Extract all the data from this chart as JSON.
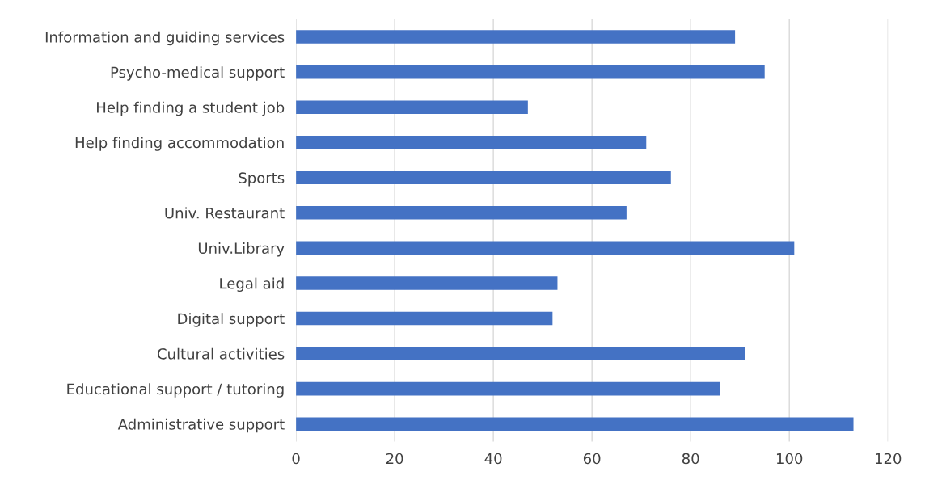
{
  "chart_data": {
    "type": "bar",
    "orientation": "horizontal",
    "categories": [
      "Information and guiding services",
      "Psycho-medical support",
      "Help finding a student job",
      "Help finding accommodation",
      "Sports",
      "Univ. Restaurant",
      "Univ.Library",
      "Legal aid",
      "Digital support",
      "Cultural activities",
      "Educational support / tutoring",
      "Administrative support"
    ],
    "values": [
      89,
      95,
      47,
      71,
      76,
      67,
      101,
      53,
      52,
      91,
      86,
      113
    ],
    "color": "#4472c4",
    "xlim": [
      0,
      120
    ],
    "xticks": [
      0,
      20,
      40,
      60,
      80,
      100,
      120
    ],
    "grid": "x"
  }
}
